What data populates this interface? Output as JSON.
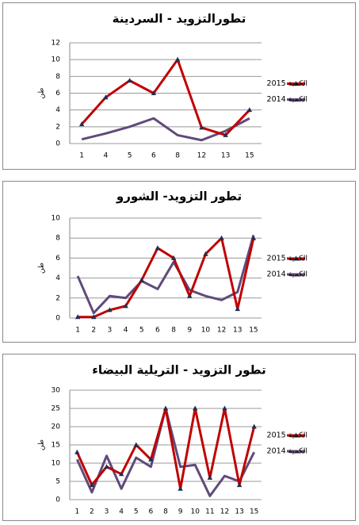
{
  "chart_data": [
    {
      "type": "line",
      "title": "تطورالتزويد - السردينة",
      "y_label": "طن",
      "categories": [
        "1",
        "4",
        "5",
        "6",
        "8",
        "12",
        "13",
        "15"
      ],
      "ylim": [
        0,
        12
      ],
      "yticks": [
        0,
        2,
        4,
        6,
        8,
        10,
        12
      ],
      "grid": true,
      "legend": "right",
      "series": [
        {
          "name": "الكمية 2015",
          "color": "#c00000",
          "marker": "triangle",
          "values": [
            2.3,
            5.5,
            7.5,
            6,
            10,
            1.9,
            1,
            4
          ]
        },
        {
          "name": "الكمية 2014",
          "color": "#604a7b",
          "values": [
            0.5,
            1.2,
            2,
            3,
            1,
            0.4,
            1.5,
            3
          ]
        }
      ]
    },
    {
      "type": "line",
      "title": "تطور التزويد- الشورو",
      "y_label": "طن",
      "categories": [
        "1",
        "2",
        "3",
        "4",
        "5",
        "6",
        "8",
        "9",
        "10",
        "12",
        "13",
        "15"
      ],
      "ylim": [
        0,
        10
      ],
      "yticks": [
        0,
        2,
        4,
        6,
        8,
        10
      ],
      "grid": true,
      "legend": "right",
      "series": [
        {
          "name": "الكمية 2015",
          "color": "#c00000",
          "marker": "triangle",
          "values": [
            0.1,
            0.1,
            0.8,
            1.2,
            3.8,
            7,
            6,
            2.2,
            6.4,
            8,
            0.9,
            8
          ]
        },
        {
          "name": "الكمية 2014",
          "color": "#604a7b",
          "values": [
            4.2,
            0.5,
            2.2,
            2,
            3.7,
            2.9,
            5.6,
            2.8,
            2.2,
            1.8,
            2.6,
            8.3
          ]
        }
      ]
    },
    {
      "type": "line",
      "title": "تطور التزويد - التريلية البيضاء",
      "y_label": "طن",
      "categories": [
        "1",
        "2",
        "3",
        "4",
        "5",
        "6",
        "8",
        "9",
        "10",
        "11",
        "12",
        "13",
        "15"
      ],
      "ylim": [
        0,
        30
      ],
      "yticks": [
        0,
        5,
        10,
        15,
        20,
        25,
        30
      ],
      "grid": true,
      "legend": "right",
      "series": [
        {
          "name": "الكمية 2015",
          "color": "#c00000",
          "marker": "triangle",
          "values": [
            13,
            4,
            9,
            7,
            15,
            11,
            25,
            3,
            25,
            6,
            25,
            4,
            20
          ]
        },
        {
          "name": "الكمية 2014",
          "color": "#604a7b",
          "values": [
            11,
            2,
            12,
            3,
            11.5,
            9,
            25,
            9,
            9.5,
            1,
            6.5,
            5,
            13
          ]
        }
      ]
    }
  ]
}
